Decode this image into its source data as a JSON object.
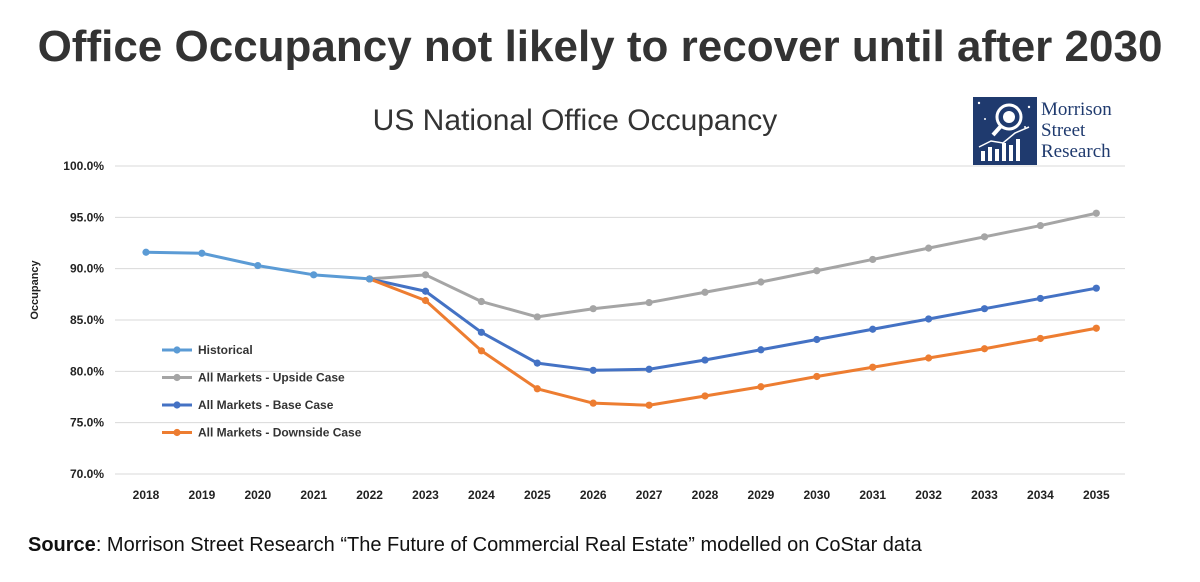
{
  "headline": "Office Occupancy not likely to recover until after 2030",
  "logo": {
    "lines": [
      "Morrison",
      "Street",
      "Research"
    ]
  },
  "source": {
    "label": "Source",
    "text": ": Morrison Street Research “The Future of Commercial Real Estate” modelled on CoStar data"
  },
  "chart_data": {
    "type": "line",
    "title": "US National Office Occupancy",
    "xlabel": "",
    "ylabel": "Occupancy",
    "x": [
      "2018",
      "2019",
      "2020",
      "2021",
      "2022",
      "2023",
      "2024",
      "2025",
      "2026",
      "2027",
      "2028",
      "2029",
      "2030",
      "2031",
      "2032",
      "2033",
      "2034",
      "2035"
    ],
    "ylim": [
      70,
      100
    ],
    "yticks": [
      "70.0%",
      "75.0%",
      "80.0%",
      "85.0%",
      "90.0%",
      "95.0%",
      "100.0%"
    ],
    "grid": true,
    "legend_position": "lower-left",
    "series": [
      {
        "name": "All Markets - Upside Case",
        "color": "#a5a5a5",
        "values": [
          null,
          null,
          null,
          null,
          89.0,
          89.4,
          86.8,
          85.3,
          86.1,
          86.7,
          87.7,
          88.7,
          89.8,
          90.9,
          92.0,
          93.1,
          94.2,
          95.4
        ]
      },
      {
        "name": "All Markets - Base Case",
        "color": "#4472c4",
        "values": [
          null,
          null,
          null,
          null,
          89.0,
          87.8,
          83.8,
          80.8,
          80.1,
          80.2,
          81.1,
          82.1,
          83.1,
          84.1,
          85.1,
          86.1,
          87.1,
          88.1
        ]
      },
      {
        "name": "All Markets - Downside Case",
        "color": "#ed7d31",
        "values": [
          null,
          null,
          null,
          null,
          89.0,
          86.9,
          82.0,
          78.3,
          76.9,
          76.7,
          77.6,
          78.5,
          79.5,
          80.4,
          81.3,
          82.2,
          83.2,
          84.2
        ]
      },
      {
        "name": "Historical",
        "color": "#5b9bd5",
        "values": [
          91.6,
          91.5,
          90.3,
          89.4,
          89.0,
          null,
          null,
          null,
          null,
          null,
          null,
          null,
          null,
          null,
          null,
          null,
          null,
          null
        ]
      }
    ],
    "legend_order": [
      "Historical",
      "All Markets - Upside Case",
      "All Markets - Base Case",
      "All Markets - Downside Case"
    ]
  }
}
